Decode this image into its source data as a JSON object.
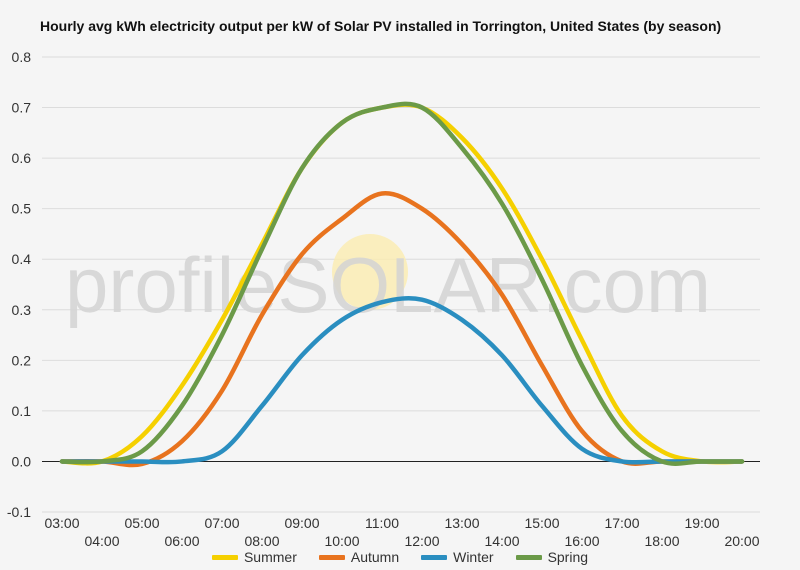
{
  "chart_data": {
    "type": "line",
    "title": "Hourly avg kWh electricity output per kW of Solar PV installed in Torrington, United States (by season)",
    "watermark": "profileSOLAR.com",
    "xlabel": "",
    "ylabel": "",
    "ylim": [
      -0.1,
      0.8
    ],
    "yticks": [
      "-0.1",
      "0.0",
      "0.1",
      "0.2",
      "0.3",
      "0.4",
      "0.5",
      "0.6",
      "0.7",
      "0.8"
    ],
    "grid": true,
    "legend_position": "bottom",
    "categories": [
      "03:00",
      "04:00",
      "05:00",
      "06:00",
      "07:00",
      "08:00",
      "09:00",
      "10:00",
      "11:00",
      "12:00",
      "13:00",
      "14:00",
      "15:00",
      "16:00",
      "17:00",
      "18:00",
      "19:00",
      "20:00"
    ],
    "series": [
      {
        "name": "Summer",
        "color": "#f5d000",
        "values": [
          0.0,
          0.0,
          0.05,
          0.15,
          0.28,
          0.43,
          0.58,
          0.67,
          0.7,
          0.7,
          0.64,
          0.54,
          0.4,
          0.24,
          0.09,
          0.02,
          0.0,
          0.0
        ]
      },
      {
        "name": "Autumn",
        "color": "#e8731e",
        "values": [
          0.0,
          0.0,
          -0.005,
          0.04,
          0.14,
          0.29,
          0.41,
          0.48,
          0.53,
          0.5,
          0.43,
          0.33,
          0.19,
          0.06,
          0.0,
          0.0,
          0.0,
          0.0
        ]
      },
      {
        "name": "Winter",
        "color": "#2a8ec0",
        "values": [
          0.0,
          0.0,
          0.0,
          0.0,
          0.02,
          0.11,
          0.21,
          0.28,
          0.315,
          0.32,
          0.28,
          0.21,
          0.11,
          0.025,
          0.0,
          0.0,
          0.0,
          0.0
        ]
      },
      {
        "name": "Spring",
        "color": "#6b9a48",
        "values": [
          0.0,
          0.0,
          0.02,
          0.11,
          0.25,
          0.42,
          0.58,
          0.67,
          0.7,
          0.7,
          0.62,
          0.51,
          0.36,
          0.19,
          0.06,
          0.0,
          0.0,
          0.0
        ]
      }
    ]
  }
}
